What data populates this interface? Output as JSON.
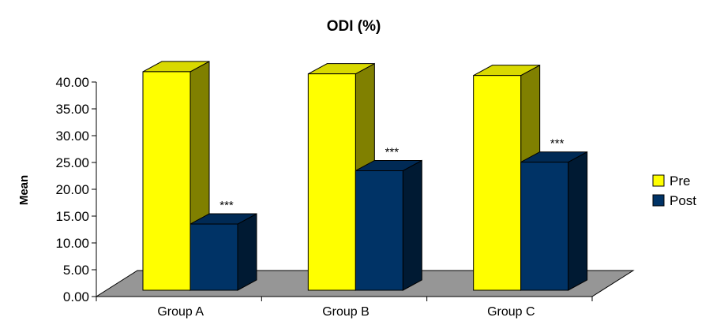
{
  "chart_data": {
    "type": "bar",
    "title": "ODI (%)",
    "ylabel": "Mean",
    "xlabel": "",
    "ylim": [
      0,
      40
    ],
    "yticks": [
      "0.00",
      "5.00",
      "10.00",
      "15.00",
      "20.00",
      "25.00",
      "30.00",
      "35.00",
      "40.00"
    ],
    "categories": [
      "Group A",
      "Group B",
      "Group C"
    ],
    "series": [
      {
        "name": "Pre",
        "values": [
          40.6,
          40.2,
          39.9
        ],
        "color": "#FFFF00",
        "side_color": "#808000",
        "top_color": "#D9D900"
      },
      {
        "name": "Post",
        "values": [
          12.3,
          22.2,
          23.8
        ],
        "color": "#003366",
        "side_color": "#001A33",
        "top_color": "#002A55"
      }
    ],
    "annotations": [
      "***",
      "***",
      "***"
    ],
    "legend_position": "right",
    "grid": false,
    "three_d": true,
    "floor_color": "#969696"
  }
}
